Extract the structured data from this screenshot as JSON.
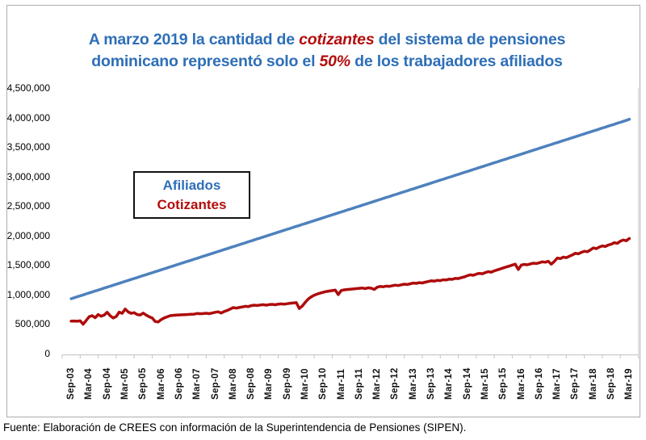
{
  "figure": {
    "title": {
      "line1_pre": "A marzo 2019 la cantidad de ",
      "line1_accent": "cotizantes",
      "line1_post": " del sistema de pensiones",
      "line2_pre": "dominicano representó solo el ",
      "line2_accent": "50%",
      "line2_post": " de los trabajadores afiliados",
      "color_blue": "#2E6FB7",
      "color_red": "#B30D0D"
    },
    "legend": {
      "items": [
        {
          "label": "Afiliados",
          "color": "#2E6FB7"
        },
        {
          "label": "Cotizantes",
          "color": "#B30D0D"
        }
      ]
    },
    "footer": "Fuente: Elaboración de CREES con información de la Superintendencia de Pensiones (SIPEN)."
  },
  "chart_data": {
    "type": "line",
    "title": "A marzo 2019 la cantidad de cotizantes del sistema de pensiones dominicano representó solo el 50% de los trabajadores afiliados",
    "xlabel": "",
    "ylabel": "",
    "ylim": [
      0,
      4500000
    ],
    "grid": false,
    "legend_position": "inside-upper-left",
    "x_frequency": "monthly",
    "x_range": [
      "Sep-03",
      "Mar-19"
    ],
    "y_tick_labels": [
      "4,500,000",
      "4,000,000",
      "3,500,000",
      "3,000,000",
      "2,500,000",
      "2,000,000",
      "1,500,000",
      "1,000,000",
      "500,000",
      "0"
    ],
    "x_tick_labels": [
      "Sep-03",
      "Mar-04",
      "Sep-04",
      "Mar-05",
      "Sep-05",
      "Mar-06",
      "Sep-06",
      "Mar-07",
      "Sep-07",
      "Mar-08",
      "Sep-08",
      "Mar-09",
      "Sep-09",
      "Mar-10",
      "Sep-10",
      "Mar-11",
      "Sep-11",
      "Mar-12",
      "Sep-12",
      "Mar-13",
      "Sep-13",
      "Mar-14",
      "Sep-14",
      "Mar-15",
      "Sep-15",
      "Mar-16",
      "Sep-16",
      "Mar-17",
      "Sep-17",
      "Mar-18",
      "Sep-18",
      "Mar-19"
    ],
    "series": [
      {
        "name": "Afiliados",
        "color": "#4E81BD",
        "values": [
          930000,
          946000,
          963000,
          979000,
          995000,
          1012000,
          1028000,
          1044000,
          1061000,
          1077000,
          1093000,
          1110000,
          1126000,
          1142000,
          1159000,
          1175000,
          1191000,
          1208000,
          1224000,
          1240000,
          1257000,
          1273000,
          1289000,
          1306000,
          1322000,
          1338000,
          1355000,
          1371000,
          1387000,
          1404000,
          1420000,
          1436000,
          1453000,
          1469000,
          1485000,
          1502000,
          1518000,
          1534000,
          1551000,
          1567000,
          1583000,
          1600000,
          1616000,
          1632000,
          1649000,
          1665000,
          1681000,
          1698000,
          1714000,
          1730000,
          1747000,
          1763000,
          1779000,
          1796000,
          1812000,
          1828000,
          1845000,
          1861000,
          1877000,
          1894000,
          1910000,
          1926000,
          1943000,
          1959000,
          1975000,
          1992000,
          2008000,
          2024000,
          2041000,
          2057000,
          2073000,
          2090000,
          2106000,
          2122000,
          2139000,
          2155000,
          2171000,
          2188000,
          2204000,
          2220000,
          2237000,
          2253000,
          2269000,
          2286000,
          2302000,
          2318000,
          2335000,
          2351000,
          2367000,
          2384000,
          2400000,
          2416000,
          2433000,
          2449000,
          2465000,
          2482000,
          2498000,
          2514000,
          2531000,
          2547000,
          2563000,
          2580000,
          2596000,
          2612000,
          2629000,
          2645000,
          2661000,
          2678000,
          2694000,
          2710000,
          2727000,
          2743000,
          2759000,
          2776000,
          2792000,
          2808000,
          2825000,
          2841000,
          2857000,
          2874000,
          2890000,
          2906000,
          2923000,
          2939000,
          2955000,
          2972000,
          2988000,
          3004000,
          3021000,
          3037000,
          3053000,
          3070000,
          3086000,
          3102000,
          3119000,
          3135000,
          3151000,
          3168000,
          3184000,
          3200000,
          3217000,
          3233000,
          3249000,
          3266000,
          3282000,
          3298000,
          3315000,
          3331000,
          3347000,
          3364000,
          3380000,
          3396000,
          3413000,
          3429000,
          3445000,
          3462000,
          3478000,
          3494000,
          3511000,
          3527000,
          3543000,
          3560000,
          3576000,
          3592000,
          3609000,
          3625000,
          3641000,
          3658000,
          3674000,
          3690000,
          3707000,
          3723000,
          3739000,
          3756000,
          3772000,
          3788000,
          3805000,
          3821000,
          3837000,
          3854000,
          3870000,
          3886000,
          3903000,
          3919000,
          3935000,
          3952000,
          3970000
        ]
      },
      {
        "name": "Cotizantes",
        "color": "#AF0B0B",
        "values": [
          550000,
          553000,
          548000,
          556000,
          498000,
          562000,
          625000,
          643000,
          607000,
          662000,
          633000,
          652000,
          700000,
          642000,
          603000,
          628000,
          703000,
          682000,
          755000,
          706000,
          682000,
          693000,
          662000,
          654000,
          686000,
          652000,
          624000,
          603000,
          545000,
          536000,
          576000,
          605000,
          624000,
          643000,
          649000,
          653000,
          655000,
          658000,
          661000,
          664000,
          667000,
          669000,
          680000,
          675000,
          678000,
          684000,
          677000,
          688000,
          700000,
          708000,
          688000,
          714000,
          730000,
          755000,
          780000,
          771000,
          781000,
          791000,
          801000,
          796000,
          812000,
          820000,
          815000,
          824000,
          829000,
          821000,
          830000,
          835000,
          828000,
          838000,
          843000,
          837000,
          845000,
          853000,
          858000,
          864000,
          765000,
          805000,
          868000,
          925000,
          962000,
          990000,
          1010000,
          1025000,
          1040000,
          1052000,
          1060000,
          1068000,
          1076000,
          1000000,
          1070000,
          1080000,
          1086000,
          1091000,
          1096000,
          1101000,
          1106000,
          1111000,
          1103000,
          1115000,
          1108000,
          1088000,
          1126000,
          1138000,
          1132000,
          1143000,
          1139000,
          1150000,
          1160000,
          1153000,
          1165000,
          1176000,
          1171000,
          1183000,
          1195000,
          1190000,
          1202000,
          1197000,
          1210000,
          1222000,
          1234000,
          1228000,
          1241000,
          1236000,
          1252000,
          1247000,
          1263000,
          1258000,
          1275000,
          1270000,
          1287000,
          1300000,
          1320000,
          1335000,
          1327000,
          1346000,
          1360000,
          1353000,
          1373000,
          1388000,
          1380000,
          1402000,
          1418000,
          1435000,
          1452000,
          1468000,
          1482000,
          1500000,
          1515000,
          1425000,
          1500000,
          1512000,
          1505000,
          1520000,
          1532000,
          1526000,
          1540000,
          1555000,
          1548000,
          1565000,
          1515000,
          1560000,
          1620000,
          1610000,
          1635000,
          1625000,
          1650000,
          1672000,
          1700000,
          1690000,
          1715000,
          1735000,
          1726000,
          1755000,
          1790000,
          1778000,
          1805000,
          1825000,
          1815000,
          1840000,
          1855000,
          1880000,
          1868000,
          1905000,
          1925000,
          1912000,
          1950000
        ]
      }
    ]
  }
}
